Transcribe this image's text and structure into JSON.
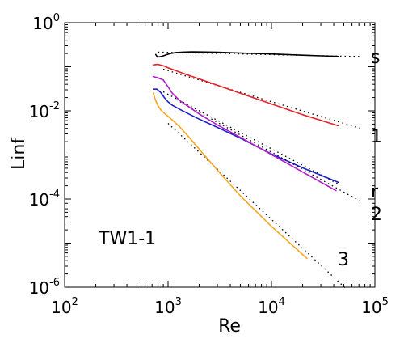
{
  "chart_data": {
    "type": "line",
    "xlabel": "Re",
    "ylabel": "Linf",
    "x_scale": "log",
    "y_scale": "log",
    "xlim": [
      100,
      100000
    ],
    "ylim": [
      1e-06,
      1
    ],
    "x_ticks": [
      {
        "value": 100,
        "base": "10",
        "exp": "2"
      },
      {
        "value": 1000,
        "base": "10",
        "exp": "3"
      },
      {
        "value": 10000,
        "base": "10",
        "exp": "4"
      },
      {
        "value": 100000,
        "base": "10",
        "exp": "5"
      }
    ],
    "y_ticks": [
      {
        "value": 1e-06,
        "base": "10",
        "exp": "-6"
      },
      {
        "value": 0.0001,
        "base": "10",
        "exp": "-4"
      },
      {
        "value": 0.01,
        "base": "10",
        "exp": "-2"
      },
      {
        "value": 1,
        "base": "10",
        "exp": "0"
      }
    ],
    "grid": false,
    "annotation": "TW1-1",
    "series": [
      {
        "label": "s",
        "color": "#000000",
        "x": [
          760,
          790,
          850,
          920,
          980,
          1050,
          1200,
          1400,
          1700,
          2000,
          3000,
          5000,
          10000,
          20000,
          30000,
          44000
        ],
        "y": [
          0.19,
          0.165,
          0.17,
          0.18,
          0.19,
          0.2,
          0.21,
          0.215,
          0.218,
          0.217,
          0.213,
          0.205,
          0.195,
          0.183,
          0.177,
          0.172
        ],
        "asymptote": {
          "x": [
            800,
            75000
          ],
          "y": [
            0.215,
            0.17
          ]
        }
      },
      {
        "label": "1",
        "color": "#e8202a",
        "x": [
          720,
          800,
          900,
          1000,
          1200,
          1500,
          2000,
          3000,
          5000,
          10000,
          20000,
          44000
        ],
        "y": [
          0.11,
          0.113,
          0.105,
          0.095,
          0.081,
          0.067,
          0.053,
          0.038,
          0.025,
          0.0143,
          0.0082,
          0.0046
        ],
        "asymptote": {
          "x": [
            900,
            75000
          ],
          "y": [
            0.088,
            0.0039
          ]
        }
      },
      {
        "label": "r",
        "color": "#1e1ecc",
        "x": [
          720,
          780,
          850,
          920,
          1000,
          1100,
          1300,
          1600,
          2000,
          3000,
          5000,
          10000,
          20000,
          44000
        ],
        "y": [
          0.031,
          0.031,
          0.026,
          0.02,
          0.016,
          0.0134,
          0.0108,
          0.0084,
          0.0065,
          0.0042,
          0.0024,
          0.00105,
          0.00051,
          0.00024
        ],
        "asymptote": {
          "x": [
            900,
            44000
          ],
          "y": [
            0.027,
            0.00022
          ]
        }
      },
      {
        "label": "2",
        "color": "#b01ec8",
        "x": [
          720,
          800,
          900,
          1000,
          1100,
          1300,
          1600,
          2000,
          3000,
          5000,
          10000,
          20000,
          42000
        ],
        "y": [
          0.06,
          0.056,
          0.05,
          0.035,
          0.025,
          0.017,
          0.0122,
          0.0085,
          0.0048,
          0.0025,
          0.00102,
          0.00041,
          0.000155
        ],
        "asymptote": {
          "x": [
            1200,
            75000
          ],
          "y": [
            0.018,
            8.5e-05
          ]
        }
      },
      {
        "label": "3",
        "color": "#f5a623",
        "x": [
          720,
          760,
          800,
          850,
          900,
          1000,
          1100,
          1300,
          1600,
          2000,
          3000,
          5000,
          10000,
          22000
        ],
        "y": [
          0.025,
          0.017,
          0.013,
          0.0105,
          0.0092,
          0.0075,
          0.0062,
          0.0043,
          0.0025,
          0.00135,
          0.00045,
          0.000118,
          2.4e-05,
          4.5e-06
        ],
        "asymptote": {
          "x": [
            1000,
            52000
          ],
          "y": [
            0.0052,
            9.5e-07
          ]
        }
      }
    ]
  }
}
